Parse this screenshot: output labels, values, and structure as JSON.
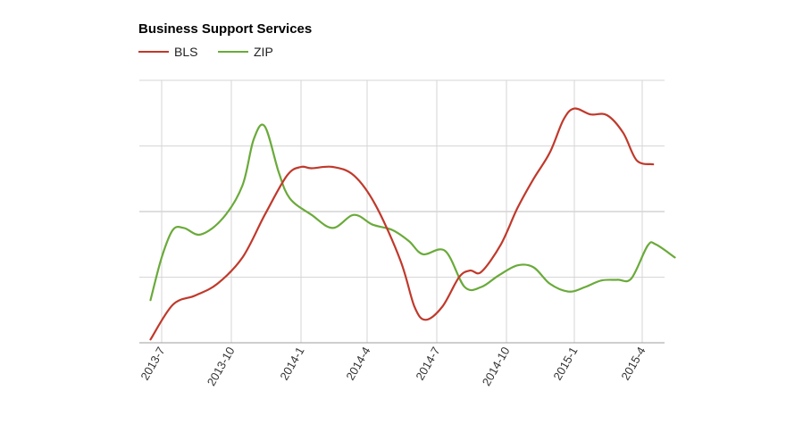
{
  "chart_data": {
    "type": "line",
    "title": "Business Support Services",
    "xlabel": "",
    "ylabel": "",
    "x_tick_labels": [
      "2013-7",
      "2013-10",
      "2014-1",
      "2014-4",
      "2014-7",
      "2014-10",
      "2015-1",
      "2015-4"
    ],
    "x_range": [
      2013.46,
      2015.37
    ],
    "ylim": [
      0,
      4
    ],
    "grid": true,
    "legend_position": "top-left",
    "series": [
      {
        "name": "BLS",
        "color": "#c0392b",
        "points": [
          [
            2013.46,
            0.05
          ],
          [
            2013.54,
            0.58
          ],
          [
            2013.62,
            0.72
          ],
          [
            2013.7,
            0.9
          ],
          [
            2013.79,
            1.3
          ],
          [
            2013.87,
            1.95
          ],
          [
            2013.95,
            2.55
          ],
          [
            2014.0,
            2.68
          ],
          [
            2014.04,
            2.66
          ],
          [
            2014.12,
            2.68
          ],
          [
            2014.2,
            2.55
          ],
          [
            2014.28,
            2.1
          ],
          [
            2014.37,
            1.25
          ],
          [
            2014.42,
            0.55
          ],
          [
            2014.46,
            0.35
          ],
          [
            2014.52,
            0.55
          ],
          [
            2014.58,
            1.0
          ],
          [
            2014.62,
            1.1
          ],
          [
            2014.66,
            1.08
          ],
          [
            2014.73,
            1.5
          ],
          [
            2014.79,
            2.05
          ],
          [
            2014.85,
            2.5
          ],
          [
            2014.91,
            2.9
          ],
          [
            2014.96,
            3.4
          ],
          [
            2015.0,
            3.57
          ],
          [
            2015.06,
            3.48
          ],
          [
            2015.12,
            3.47
          ],
          [
            2015.18,
            3.2
          ],
          [
            2015.23,
            2.78
          ],
          [
            2015.29,
            2.72
          ]
        ]
      },
      {
        "name": "ZIP",
        "color": "#6aaa3a",
        "points": [
          [
            2013.46,
            0.65
          ],
          [
            2013.5,
            1.3
          ],
          [
            2013.54,
            1.72
          ],
          [
            2013.58,
            1.75
          ],
          [
            2013.64,
            1.65
          ],
          [
            2013.72,
            1.9
          ],
          [
            2013.79,
            2.4
          ],
          [
            2013.83,
            3.1
          ],
          [
            2013.87,
            3.3
          ],
          [
            2013.92,
            2.6
          ],
          [
            2013.96,
            2.2
          ],
          [
            2014.04,
            1.95
          ],
          [
            2014.12,
            1.75
          ],
          [
            2014.2,
            1.95
          ],
          [
            2014.27,
            1.8
          ],
          [
            2014.34,
            1.72
          ],
          [
            2014.4,
            1.55
          ],
          [
            2014.45,
            1.35
          ],
          [
            2014.53,
            1.4
          ],
          [
            2014.6,
            0.85
          ],
          [
            2014.66,
            0.85
          ],
          [
            2014.72,
            1.02
          ],
          [
            2014.79,
            1.18
          ],
          [
            2014.85,
            1.15
          ],
          [
            2014.91,
            0.9
          ],
          [
            2014.98,
            0.78
          ],
          [
            2015.04,
            0.85
          ],
          [
            2015.1,
            0.95
          ],
          [
            2015.16,
            0.96
          ],
          [
            2015.21,
            0.98
          ],
          [
            2015.27,
            1.48
          ],
          [
            2015.3,
            1.5
          ],
          [
            2015.37,
            1.3
          ]
        ]
      }
    ]
  }
}
